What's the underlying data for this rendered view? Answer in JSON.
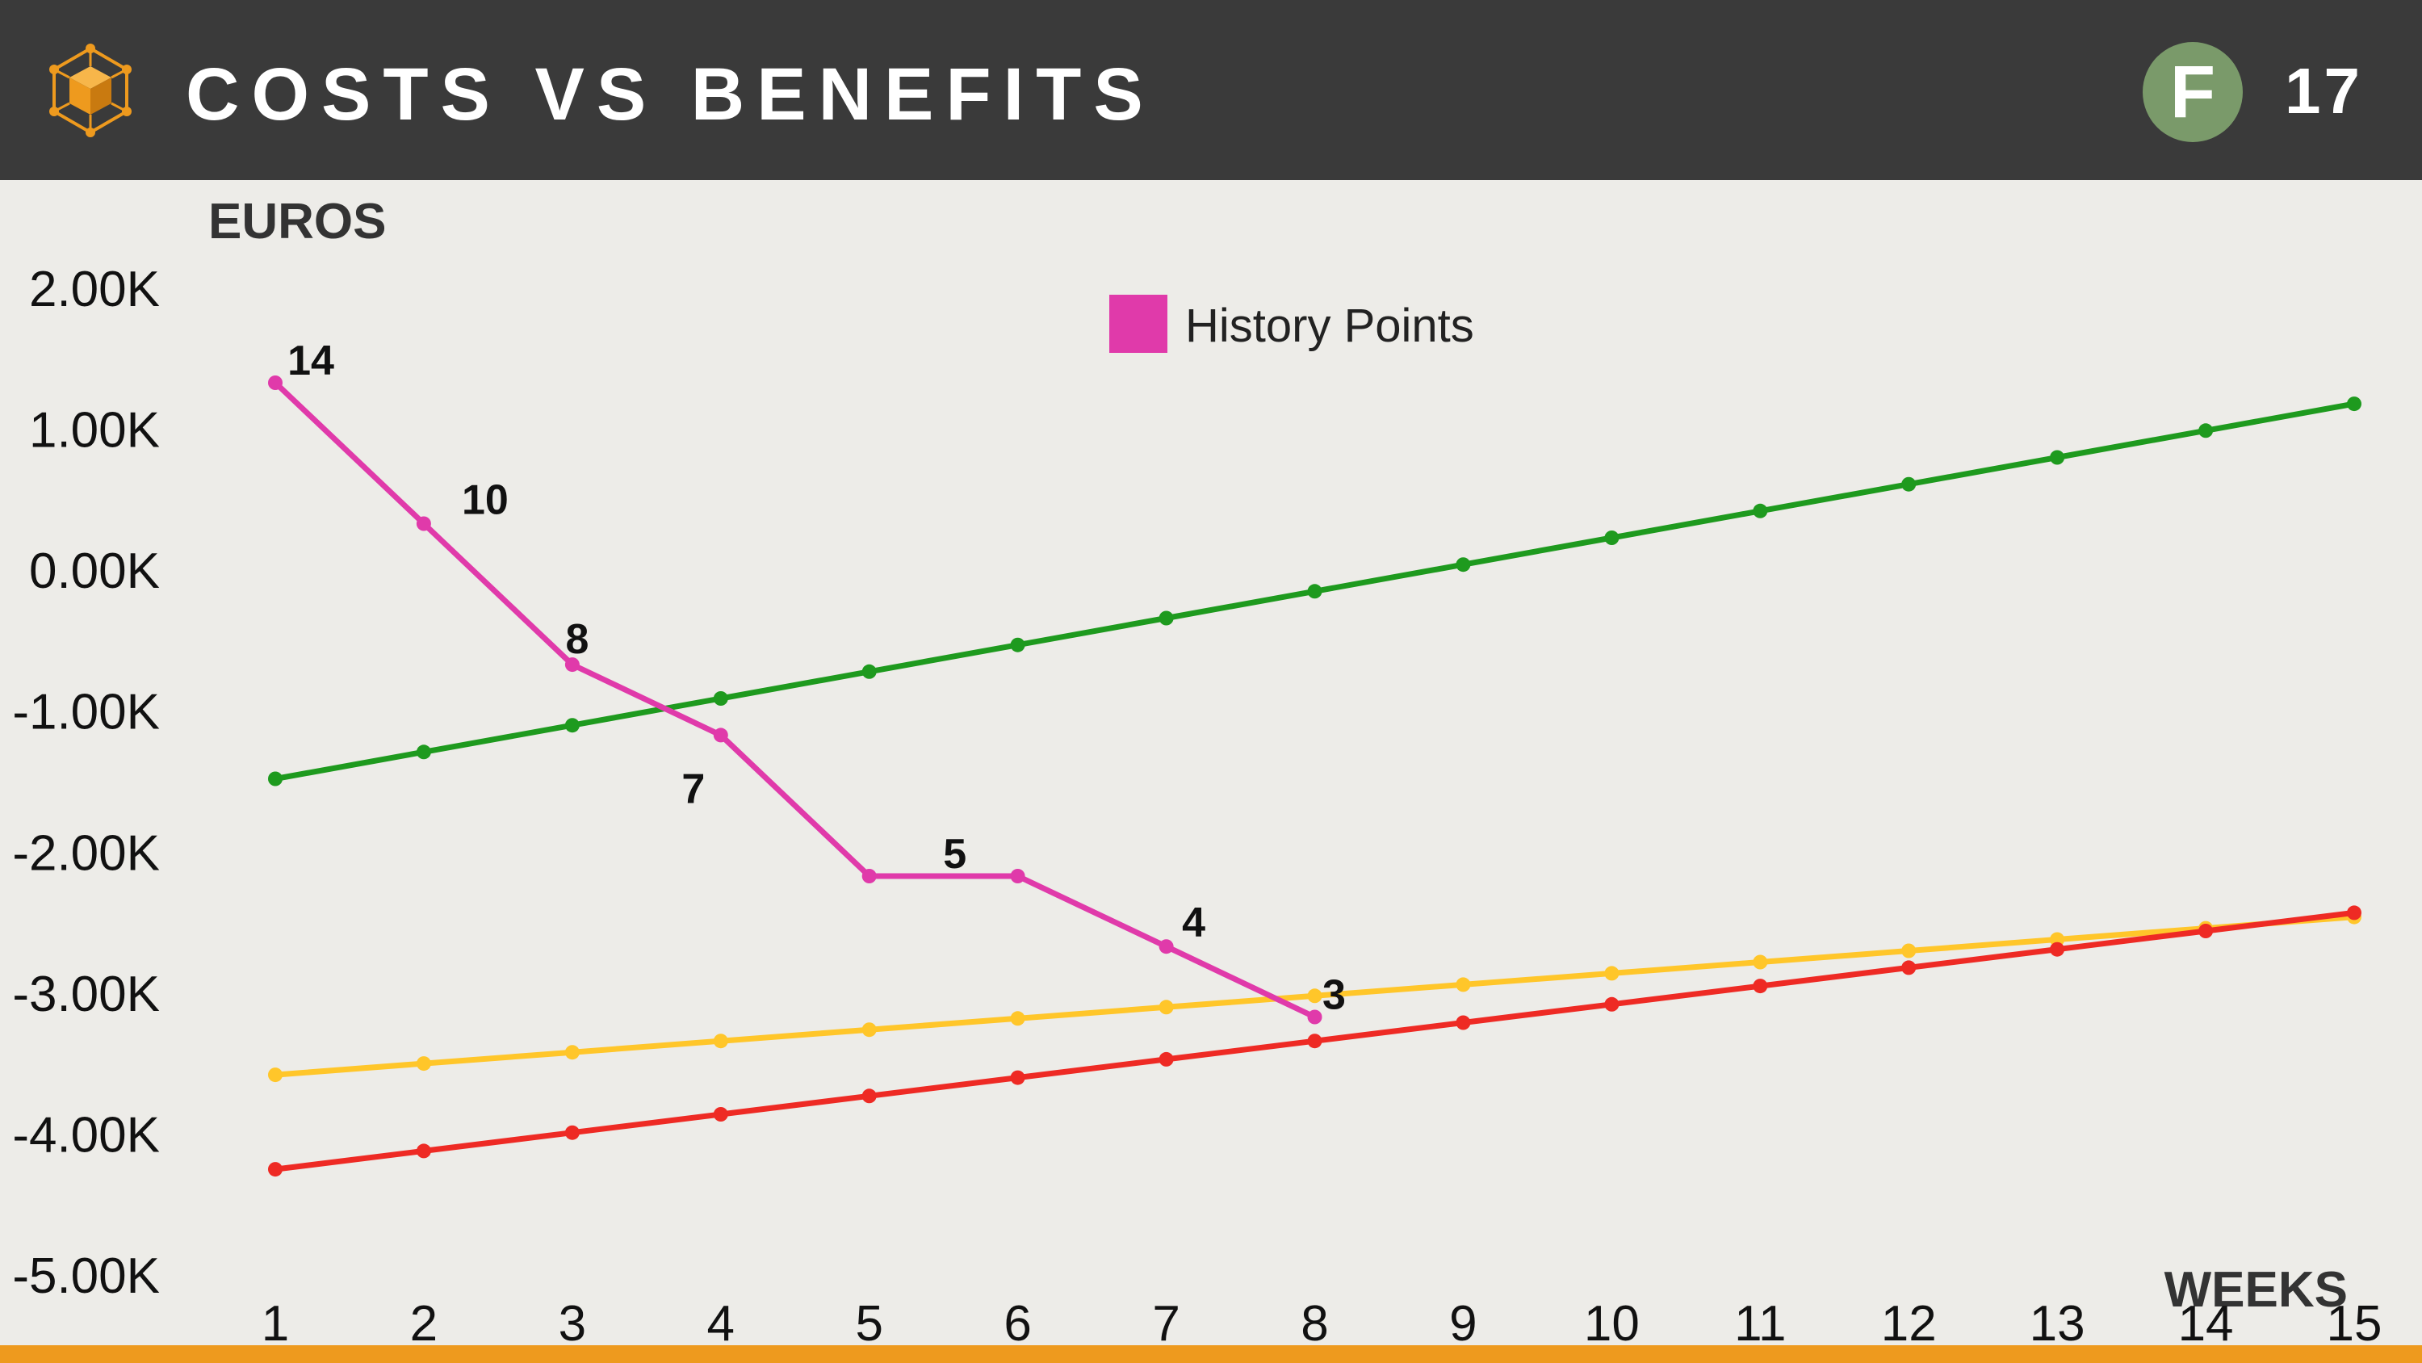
{
  "header": {
    "title": "COSTS VS BENEFITS",
    "badge": "F",
    "page_number": "17"
  },
  "colors": {
    "header_bg": "#3A3A3A",
    "background": "#EDECE8",
    "accent": "#EE9A1E",
    "badge": "#7A9A6A"
  },
  "chart_data": {
    "type": "line",
    "ylabel": "EUROS",
    "xlabel": "WEEKS",
    "x": [
      1,
      2,
      3,
      4,
      5,
      6,
      7,
      8,
      9,
      10,
      11,
      12,
      13,
      14,
      15
    ],
    "xlim": [
      1,
      15
    ],
    "ylim": [
      -5000,
      2000
    ],
    "y_ticks": [
      2000,
      1000,
      0,
      -1000,
      -2000,
      -3000,
      -4000,
      -5000
    ],
    "y_tick_labels": [
      "2.00K",
      "1.00K",
      "0.00K",
      "-1.00K",
      "-2.00K",
      "-3.00K",
      "-4.00K",
      "-5.00K"
    ],
    "grid": false,
    "legend": {
      "position": "top-center",
      "entries": [
        "History Points"
      ]
    },
    "series": [
      {
        "color": "#1E9A1E",
        "x": [
          1,
          2,
          3,
          4,
          5,
          6,
          7,
          8,
          9,
          10,
          11,
          12,
          13,
          14,
          15
        ],
        "values": [
          -1480,
          -1290,
          -1100,
          -910,
          -720,
          -530,
          -340,
          -150,
          40,
          230,
          420,
          610,
          800,
          990,
          1180
        ]
      },
      {
        "color": "#FFC62A",
        "x": [
          1,
          2,
          3,
          4,
          5,
          6,
          7,
          8,
          9,
          10,
          11,
          12,
          13,
          14,
          15
        ],
        "values": [
          -3580,
          -3500,
          -3420,
          -3340,
          -3260,
          -3180,
          -3100,
          -3020,
          -2940,
          -2860,
          -2780,
          -2700,
          -2620,
          -2540,
          -2460
        ]
      },
      {
        "color": "#EE2A24",
        "x": [
          1,
          2,
          3,
          4,
          5,
          6,
          7,
          8,
          9,
          10,
          11,
          12,
          13,
          14,
          15
        ],
        "values": [
          -4250,
          -4120,
          -3990,
          -3860,
          -3730,
          -3600,
          -3470,
          -3340,
          -3210,
          -3080,
          -2950,
          -2820,
          -2690,
          -2560,
          -2430
        ]
      },
      {
        "name": "History Points",
        "color": "#E03AAA",
        "x": [
          1,
          2,
          3,
          4,
          5,
          6,
          7,
          8
        ],
        "values": [
          1330,
          330,
          -670,
          -1170,
          -2170,
          -2170,
          -2670,
          -3170
        ],
        "labels": [
          "14",
          "10",
          "8",
          "7",
          "5",
          "",
          "4",
          "3"
        ]
      }
    ]
  }
}
